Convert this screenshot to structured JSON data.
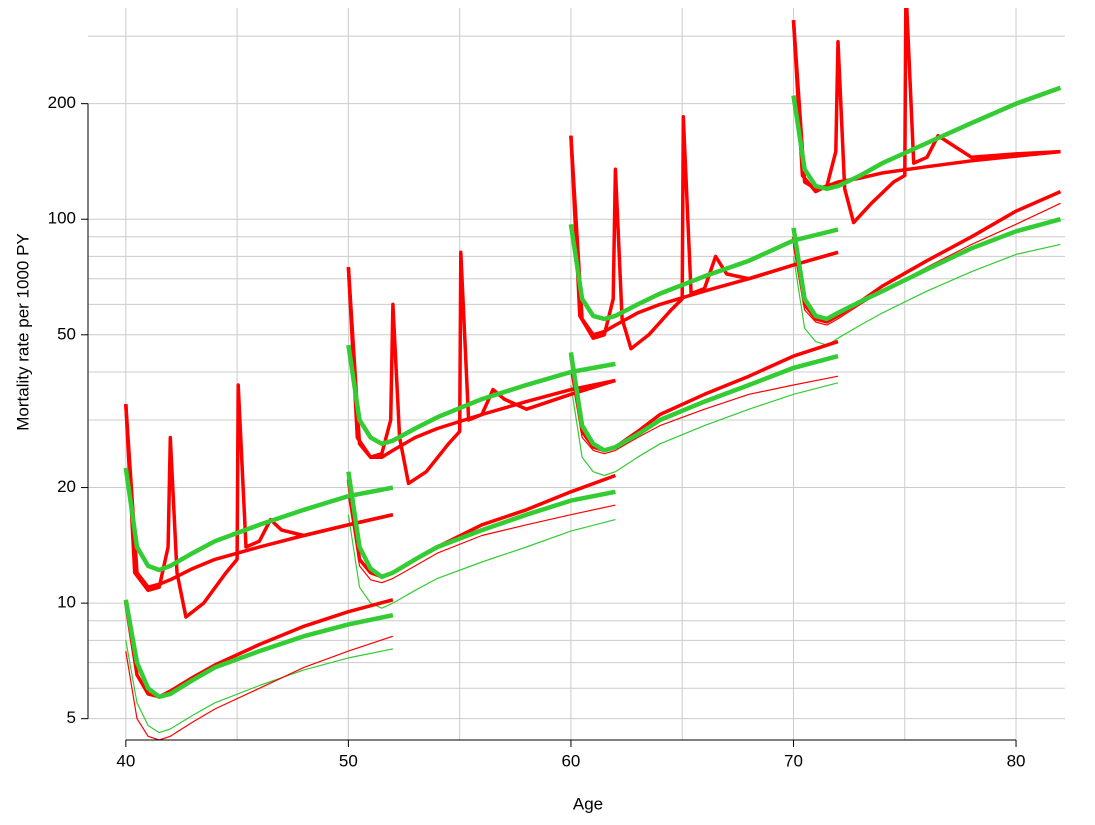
{
  "chart_data": {
    "type": "line",
    "xlabel": "Age",
    "ylabel": "Mortality rate per 1000 PY",
    "log_y": true,
    "grid": true,
    "xlim": [
      38.3,
      82.2
    ],
    "ylim": [
      4.4,
      355
    ],
    "xticks": [
      40,
      50,
      60,
      70,
      80
    ],
    "yticks": [
      5,
      10,
      20,
      50,
      100,
      200
    ],
    "x_grid": [
      40,
      45,
      50,
      55,
      60,
      65,
      70,
      75,
      80
    ],
    "y_grid": [
      5,
      6,
      7,
      8,
      9,
      10,
      20,
      30,
      40,
      50,
      60,
      70,
      80,
      90,
      100,
      200,
      300
    ],
    "series": [
      {
        "color": "#33cc33",
        "width": 1.2,
        "x": [
          40,
          40.5,
          41,
          41.5,
          42,
          43,
          44,
          46,
          48,
          50,
          52
        ],
        "values": [
          8,
          5.5,
          4.8,
          4.6,
          4.7,
          5.1,
          5.5,
          6.1,
          6.7,
          7.2,
          7.6
        ]
      },
      {
        "color": "#33cc33",
        "width": 1.2,
        "x": [
          50,
          50.5,
          51,
          51.5,
          52,
          53,
          54,
          56,
          58,
          60,
          62
        ],
        "values": [
          17,
          11,
          10,
          9.7,
          10,
          10.8,
          11.6,
          12.8,
          14,
          15.4,
          16.5
        ]
      },
      {
        "color": "#33cc33",
        "width": 1.2,
        "x": [
          60,
          60.5,
          61,
          61.5,
          62,
          63,
          64,
          66,
          68,
          70,
          72
        ],
        "values": [
          37,
          24,
          22,
          21.5,
          22,
          24,
          26,
          29,
          32,
          35,
          37.5
        ]
      },
      {
        "color": "#33cc33",
        "width": 1.2,
        "x": [
          70,
          70.5,
          71,
          71.5,
          72,
          73,
          74,
          76,
          78,
          80,
          82
        ],
        "values": [
          80,
          52,
          48,
          47,
          49,
          53,
          57,
          65,
          73,
          81,
          86
        ]
      },
      {
        "color": "#ff0000",
        "width": 1.2,
        "x": [
          40,
          40.5,
          41,
          41.5,
          42,
          43,
          44,
          46,
          48,
          50,
          52
        ],
        "values": [
          7.5,
          5,
          4.5,
          4.4,
          4.5,
          4.9,
          5.3,
          6,
          6.8,
          7.5,
          8.2
        ]
      },
      {
        "color": "#ff0000",
        "width": 1.2,
        "x": [
          50,
          50.5,
          51,
          51.5,
          52,
          53,
          54,
          56,
          58,
          60,
          62
        ],
        "values": [
          19,
          12.5,
          11.5,
          11.3,
          11.6,
          12.5,
          13.5,
          15,
          16,
          17,
          18
        ]
      },
      {
        "color": "#ff0000",
        "width": 1.2,
        "x": [
          60,
          60.5,
          61,
          61.5,
          62,
          63,
          64,
          66,
          68,
          70,
          72
        ],
        "values": [
          40,
          27,
          25,
          24.5,
          25,
          27,
          29,
          32,
          35,
          37,
          39
        ]
      },
      {
        "color": "#ff0000",
        "width": 1.2,
        "x": [
          70,
          70.5,
          71,
          71.5,
          72,
          73,
          74,
          76,
          78,
          80,
          82
        ],
        "values": [
          85,
          58,
          54,
          53,
          55,
          60,
          65,
          75,
          86,
          97,
          110
        ]
      },
      {
        "color": "#ff0000",
        "width": 3.5,
        "x": [
          40,
          40.4,
          41,
          41.5,
          41.9,
          42,
          42.3,
          42.7,
          43.5,
          44.5,
          45,
          45.05,
          45.4,
          46,
          46.5,
          47,
          48,
          50,
          52
        ],
        "values": [
          33,
          12,
          10.8,
          11,
          14,
          27,
          12,
          9.2,
          10,
          12,
          13,
          37,
          14,
          14.5,
          16.5,
          15.5,
          15,
          16,
          17
        ]
      },
      {
        "color": "#ff0000",
        "width": 3.5,
        "x": [
          50,
          50.4,
          51,
          51.5,
          51.9,
          52,
          52.3,
          52.7,
          53.5,
          54.5,
          55,
          55.05,
          55.4,
          56,
          56.5,
          57,
          58,
          60,
          62
        ],
        "values": [
          75,
          27,
          24,
          24.5,
          30,
          60,
          27,
          20.5,
          22,
          26,
          28,
          82,
          30,
          31,
          36,
          34,
          32,
          35,
          38
        ]
      },
      {
        "color": "#ff0000",
        "width": 3.5,
        "x": [
          60,
          60.4,
          61,
          61.5,
          61.9,
          62,
          62.3,
          62.7,
          63.5,
          64.5,
          65,
          65.05,
          65.4,
          66,
          66.5,
          67,
          68,
          70,
          72
        ],
        "values": [
          165,
          56,
          49,
          50,
          62,
          135,
          55,
          46,
          50,
          58,
          62,
          185,
          64,
          66,
          80,
          72,
          70,
          76,
          82
        ]
      },
      {
        "color": "#ff0000",
        "width": 3.5,
        "x": [
          70,
          70.4,
          71,
          71.5,
          71.9,
          72,
          72.3,
          72.7,
          73.5,
          74.5,
          75,
          75.05,
          75.4,
          76,
          76.5,
          77,
          78,
          80,
          82
        ],
        "values": [
          330,
          130,
          118,
          122,
          150,
          290,
          120,
          98,
          110,
          125,
          130,
          400,
          140,
          145,
          165,
          158,
          145,
          148,
          150
        ]
      },
      {
        "color": "#ff0000",
        "width": 3.5,
        "x": [
          40,
          40.5,
          41,
          41.5,
          42,
          43,
          44,
          46,
          48,
          50,
          52
        ],
        "values": [
          33,
          12,
          11,
          11.2,
          11.5,
          12.3,
          13,
          14,
          15,
          16,
          17
        ]
      },
      {
        "color": "#ff0000",
        "width": 3.5,
        "x": [
          50,
          50.5,
          51,
          51.5,
          52,
          53,
          54,
          56,
          58,
          60,
          62
        ],
        "values": [
          75,
          26,
          24,
          24,
          25,
          27,
          28.5,
          31,
          33.5,
          36,
          38
        ]
      },
      {
        "color": "#ff0000",
        "width": 3.5,
        "x": [
          60,
          60.5,
          61,
          61.5,
          62,
          63,
          64,
          66,
          68,
          70,
          72
        ],
        "values": [
          165,
          55,
          50,
          51,
          53,
          57,
          60,
          65,
          70,
          76,
          82
        ]
      },
      {
        "color": "#ff0000",
        "width": 3.5,
        "x": [
          70,
          70.5,
          71,
          71.5,
          72,
          73,
          74,
          76,
          78,
          80,
          82
        ],
        "values": [
          330,
          125,
          120,
          122,
          125,
          128,
          132,
          137,
          142,
          146,
          150
        ]
      },
      {
        "color": "#ff0000",
        "width": 3.5,
        "x": [
          40,
          40.5,
          41,
          41.5,
          42,
          43,
          44,
          46,
          48,
          50,
          52
        ],
        "values": [
          10,
          6.5,
          5.8,
          5.7,
          5.9,
          6.4,
          6.9,
          7.8,
          8.7,
          9.5,
          10.2
        ]
      },
      {
        "color": "#ff0000",
        "width": 3.5,
        "x": [
          50,
          50.5,
          51,
          51.5,
          52,
          53,
          54,
          56,
          58,
          60,
          62
        ],
        "values": [
          21,
          13,
          12,
          11.7,
          12,
          13,
          14,
          16,
          17.5,
          19.5,
          21.5
        ]
      },
      {
        "color": "#ff0000",
        "width": 3.5,
        "x": [
          60,
          60.5,
          61,
          61.5,
          62,
          63,
          64,
          66,
          68,
          70,
          72
        ],
        "values": [
          44,
          28,
          25.5,
          25,
          25.5,
          28,
          31,
          35,
          39,
          44,
          48
        ]
      },
      {
        "color": "#ff0000",
        "width": 3.5,
        "x": [
          70,
          70.5,
          71,
          71.5,
          72,
          73,
          74,
          76,
          78,
          80,
          82
        ],
        "values": [
          90,
          60,
          55,
          54,
          56,
          61,
          67,
          78,
          90,
          105,
          118
        ]
      },
      {
        "color": "#33cc33",
        "width": 4.5,
        "x": [
          40,
          40.5,
          41,
          41.5,
          42,
          43,
          44,
          46,
          48,
          50,
          52
        ],
        "values": [
          22.5,
          14,
          12.5,
          12.2,
          12.5,
          13.5,
          14.5,
          16,
          17.5,
          19,
          20
        ]
      },
      {
        "color": "#33cc33",
        "width": 4.5,
        "x": [
          50,
          50.5,
          51,
          51.5,
          52,
          53,
          54,
          56,
          58,
          60,
          62
        ],
        "values": [
          47,
          30,
          27,
          26,
          26.5,
          28.5,
          30.5,
          34,
          37,
          40,
          42
        ]
      },
      {
        "color": "#33cc33",
        "width": 4.5,
        "x": [
          60,
          60.5,
          61,
          61.5,
          62,
          63,
          64,
          66,
          68,
          70,
          72
        ],
        "values": [
          97,
          62,
          56,
          55,
          56,
          60,
          64,
          71,
          78,
          88,
          94
        ]
      },
      {
        "color": "#33cc33",
        "width": 4.5,
        "x": [
          70,
          70.5,
          71,
          71.5,
          72,
          73,
          74,
          76,
          78,
          80,
          82
        ],
        "values": [
          210,
          135,
          122,
          120,
          122,
          130,
          140,
          158,
          178,
          200,
          220
        ]
      },
      {
        "color": "#33cc33",
        "width": 4.5,
        "x": [
          40,
          40.5,
          41,
          41.5,
          42,
          43,
          44,
          46,
          48,
          50,
          52
        ],
        "values": [
          10.2,
          7,
          6,
          5.7,
          5.8,
          6.3,
          6.8,
          7.5,
          8.2,
          8.8,
          9.3
        ]
      },
      {
        "color": "#33cc33",
        "width": 4.5,
        "x": [
          50,
          50.5,
          51,
          51.5,
          52,
          53,
          54,
          56,
          58,
          60,
          62
        ],
        "values": [
          22,
          14,
          12.3,
          11.7,
          12,
          13,
          14,
          15.5,
          17,
          18.5,
          19.5
        ]
      },
      {
        "color": "#33cc33",
        "width": 4.5,
        "x": [
          60,
          60.5,
          61,
          61.5,
          62,
          63,
          64,
          66,
          68,
          70,
          72
        ],
        "values": [
          45,
          29,
          26,
          25,
          25.5,
          27.5,
          30,
          33.5,
          37,
          41,
          44
        ]
      },
      {
        "color": "#33cc33",
        "width": 4.5,
        "x": [
          70,
          70.5,
          71,
          71.5,
          72,
          73,
          74,
          76,
          78,
          80,
          82
        ],
        "values": [
          95,
          62,
          56,
          55,
          57,
          61,
          65,
          74,
          84,
          93,
          100
        ]
      }
    ]
  }
}
